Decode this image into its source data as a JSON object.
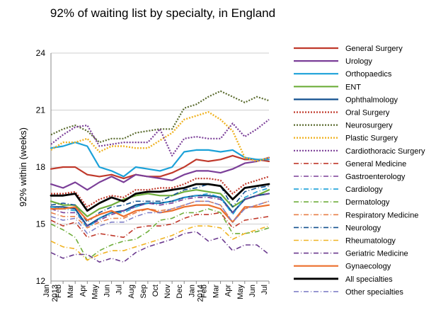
{
  "chart_data": {
    "type": "line",
    "title": "92% of waiting list by specialty, in England",
    "ylabel": "92% within (weeks)",
    "xlabel": "",
    "ylim": [
      12,
      24
    ],
    "yticks": [
      12,
      15,
      18,
      21,
      24
    ],
    "grid": "horizontal",
    "legend_position": "right",
    "x": [
      "Jan 2013",
      "Feb",
      "Mar",
      "Apr",
      "May",
      "Jun",
      "Jul",
      "Aug",
      "Sep",
      "Oct",
      "Nov",
      "Dec",
      "Jan 2014",
      "Feb",
      "Mar",
      "Apr",
      "May",
      "Jun",
      "Jul"
    ],
    "xtick_labels": [
      {
        "lines": [
          "Jan",
          "2013"
        ]
      },
      {
        "lines": [
          "Feb"
        ]
      },
      {
        "lines": [
          "Mar"
        ]
      },
      {
        "lines": [
          "Apr"
        ]
      },
      {
        "lines": [
          "May"
        ]
      },
      {
        "lines": [
          "Jun"
        ]
      },
      {
        "lines": [
          "Jul"
        ]
      },
      {
        "lines": [
          "Aug"
        ]
      },
      {
        "lines": [
          "Sep"
        ]
      },
      {
        "lines": [
          "Oct"
        ]
      },
      {
        "lines": [
          "Nov"
        ]
      },
      {
        "lines": [
          "Dec"
        ]
      },
      {
        "lines": [
          "Jan",
          "2014"
        ]
      },
      {
        "lines": [
          "Feb"
        ]
      },
      {
        "lines": [
          "Mar"
        ]
      },
      {
        "lines": [
          "Apr"
        ]
      },
      {
        "lines": [
          "May"
        ]
      },
      {
        "lines": [
          "Jun"
        ]
      },
      {
        "lines": [
          "Jul"
        ]
      }
    ],
    "series": [
      {
        "name": "General Surgery",
        "color": "#c0392b",
        "dash": "solid",
        "width": 2.2,
        "values": [
          17.9,
          18.0,
          18.0,
          17.6,
          17.5,
          17.6,
          17.4,
          17.6,
          17.5,
          17.5,
          17.7,
          18.0,
          18.4,
          18.3,
          18.4,
          18.6,
          18.4,
          18.4,
          18.3
        ]
      },
      {
        "name": "Urology",
        "color": "#7b3f98",
        "dash": "solid",
        "width": 2.2,
        "values": [
          17.1,
          16.9,
          17.2,
          16.8,
          17.2,
          17.5,
          17.2,
          17.6,
          17.5,
          17.4,
          17.3,
          17.6,
          17.8,
          17.8,
          17.7,
          17.9,
          18.2,
          18.3,
          18.5
        ]
      },
      {
        "name": "Orthopaedics",
        "color": "#1ba1d8",
        "dash": "solid",
        "width": 2.2,
        "values": [
          19.0,
          19.1,
          19.3,
          19.1,
          18.0,
          17.8,
          17.5,
          18.0,
          17.9,
          17.8,
          18.0,
          18.8,
          18.9,
          18.9,
          18.8,
          18.9,
          18.5,
          18.4,
          18.4
        ]
      },
      {
        "name": "ENT",
        "color": "#6fae3b",
        "dash": "solid",
        "width": 2.2,
        "values": [
          16.2,
          16.0,
          16.0,
          15.4,
          15.8,
          16.0,
          16.3,
          16.5,
          16.6,
          16.5,
          16.5,
          16.7,
          16.8,
          16.7,
          16.6,
          15.9,
          16.3,
          16.5,
          16.8
        ]
      },
      {
        "name": "Ophthalmology",
        "color": "#12508f",
        "dash": "solid",
        "width": 2.2,
        "values": [
          15.9,
          15.9,
          15.8,
          14.9,
          15.3,
          15.6,
          15.7,
          16.0,
          16.1,
          16.1,
          16.2,
          16.4,
          16.5,
          16.5,
          16.4,
          15.6,
          16.3,
          16.5,
          16.6
        ]
      },
      {
        "name": "Oral Surgery",
        "color": "#c0392b",
        "dash": "2,2",
        "width": 2.2,
        "values": [
          16.6,
          16.6,
          16.7,
          15.9,
          16.3,
          16.5,
          16.4,
          16.8,
          16.8,
          16.9,
          16.9,
          17.1,
          17.4,
          17.4,
          17.3,
          16.6,
          17.1,
          17.3,
          17.5
        ]
      },
      {
        "name": "Neurosurgery",
        "color": "#5a6b2e",
        "dash": "2,2",
        "width": 2.2,
        "values": [
          19.7,
          20.0,
          20.2,
          19.9,
          19.3,
          19.5,
          19.5,
          19.8,
          19.9,
          20.0,
          20.0,
          21.1,
          21.3,
          21.7,
          22.0,
          21.7,
          21.4,
          21.7,
          21.5
        ]
      },
      {
        "name": "Plastic Surgery",
        "color": "#f0b323",
        "dash": "2,2",
        "width": 2.4,
        "values": [
          18.9,
          19.3,
          19.3,
          19.5,
          18.8,
          19.1,
          19.1,
          19.0,
          19.0,
          19.4,
          19.8,
          20.5,
          20.7,
          20.9,
          20.5,
          19.9,
          18.5,
          18.3,
          18.5
        ]
      },
      {
        "name": "Cardiothoracic Surgery",
        "color": "#7b3f98",
        "dash": "2,2",
        "width": 2.2,
        "values": [
          19.2,
          19.7,
          20.1,
          20.2,
          19.1,
          19.2,
          19.3,
          19.3,
          19.3,
          20.0,
          18.6,
          19.5,
          19.6,
          19.5,
          19.5,
          20.3,
          19.6,
          20.0,
          20.5
        ]
      },
      {
        "name": "General Medicine",
        "color": "#c0392b",
        "dash": "7,3,1,3",
        "width": 1.6,
        "values": [
          15.2,
          14.9,
          15.1,
          14.3,
          14.5,
          14.4,
          14.3,
          14.8,
          14.9,
          14.9,
          15.0,
          15.3,
          15.5,
          15.5,
          15.6,
          14.8,
          15.2,
          15.3,
          15.4
        ]
      },
      {
        "name": "Gastroenterology",
        "color": "#7b3f98",
        "dash": "7,3,1,3",
        "width": 1.6,
        "values": [
          15.8,
          15.6,
          15.6,
          14.9,
          15.2,
          15.5,
          15.7,
          15.9,
          16.1,
          16.0,
          16.1,
          16.3,
          16.4,
          16.4,
          16.3,
          15.6,
          16.3,
          16.5,
          16.6
        ]
      },
      {
        "name": "Cardiology",
        "color": "#1ba1d8",
        "dash": "7,3,1,3",
        "width": 1.6,
        "values": [
          15.9,
          15.8,
          15.7,
          14.8,
          15.3,
          15.6,
          15.6,
          15.9,
          16.1,
          16.1,
          16.2,
          16.4,
          16.5,
          16.6,
          16.4,
          15.5,
          16.4,
          16.7,
          16.9
        ]
      },
      {
        "name": "Dermatology",
        "color": "#6fae3b",
        "dash": "7,3,1,3",
        "width": 1.6,
        "values": [
          15.0,
          14.7,
          14.3,
          13.1,
          13.6,
          13.9,
          14.1,
          14.2,
          14.6,
          15.2,
          15.3,
          15.6,
          15.6,
          15.8,
          15.6,
          14.5,
          14.5,
          14.6,
          14.8
        ]
      },
      {
        "name": "Respiratory Medicine",
        "color": "#e8804a",
        "dash": "7,3,1,3",
        "width": 1.6,
        "values": [
          15.6,
          15.4,
          15.4,
          14.8,
          15.1,
          15.3,
          15.3,
          15.6,
          15.8,
          15.7,
          15.8,
          16.0,
          16.2,
          16.2,
          16.0,
          15.1,
          15.8,
          16.0,
          16.2
        ]
      },
      {
        "name": "Neurology",
        "color": "#12508f",
        "dash": "7,3,1,3",
        "width": 1.6,
        "values": [
          16.0,
          16.1,
          16.0,
          15.1,
          15.6,
          15.9,
          16.0,
          16.2,
          16.2,
          16.2,
          16.5,
          16.8,
          16.9,
          17.1,
          17.0,
          15.9,
          16.7,
          16.9,
          17.0
        ]
      },
      {
        "name": "Rheumatology",
        "color": "#f0b323",
        "dash": "7,3,1,3",
        "width": 1.6,
        "values": [
          14.1,
          13.8,
          13.7,
          13.1,
          13.4,
          13.6,
          13.6,
          13.8,
          14.0,
          14.2,
          14.4,
          14.7,
          14.9,
          14.9,
          14.8,
          14.2,
          14.5,
          14.7,
          14.9
        ]
      },
      {
        "name": "Geriatric Medicine",
        "color": "#6b3a8f",
        "dash": "7,3,1,3",
        "width": 1.6,
        "values": [
          13.5,
          13.2,
          13.4,
          13.4,
          13.0,
          13.2,
          13.0,
          13.5,
          13.8,
          14.0,
          14.2,
          14.5,
          14.6,
          14.1,
          14.3,
          13.6,
          13.9,
          13.9,
          13.4
        ]
      },
      {
        "name": "Gynaecology",
        "color": "#ec6f2d",
        "dash": "solid",
        "width": 2.2,
        "values": [
          15.8,
          15.8,
          15.9,
          15.2,
          15.5,
          15.7,
          15.4,
          15.7,
          15.8,
          15.6,
          15.7,
          15.9,
          16.0,
          16.0,
          15.8,
          15.1,
          15.9,
          15.9,
          16.0
        ]
      },
      {
        "name": "All specialties",
        "color": "#000000",
        "dash": "solid",
        "width": 2.8,
        "values": [
          16.5,
          16.5,
          16.6,
          15.7,
          16.1,
          16.4,
          16.2,
          16.6,
          16.7,
          16.7,
          16.8,
          16.9,
          17.1,
          17.1,
          17.0,
          16.3,
          16.9,
          17.0,
          17.1
        ]
      },
      {
        "name": "Other specialties",
        "color": "#8080c8",
        "dash": "7,3,1,3",
        "width": 1.6,
        "values": [
          15.4,
          15.2,
          15.3,
          14.5,
          14.9,
          15.1,
          15.1,
          15.4,
          15.6,
          15.6,
          15.8,
          16.0,
          16.2,
          16.2,
          16.0,
          15.1,
          15.8,
          16.0,
          16.2
        ]
      }
    ]
  }
}
